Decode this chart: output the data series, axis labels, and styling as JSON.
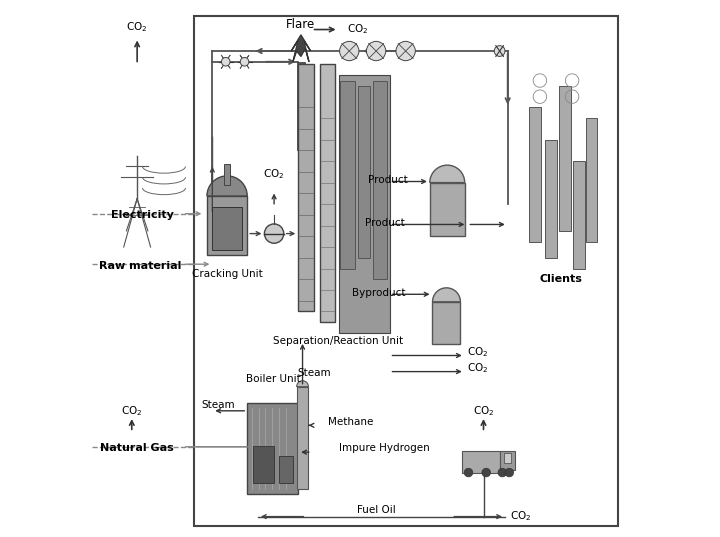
{
  "bg_color": "#ffffff",
  "box_color": "#444444",
  "arrow_color": "#444444",
  "dashed_color": "#777777",
  "gray_fill": "#aaaaaa",
  "dark_gray": "#666666",
  "light_gray": "#cccccc",
  "labels": {
    "co2_top_left": "CO$_2$",
    "electricity": "Electricity",
    "raw_material": "Raw material",
    "co2_bottom_left": "CO$_2$",
    "natural_gas": "Natural Gas",
    "flare": "Flare",
    "co2_flare": "CO$_2$",
    "co2_cracking": "CO$_2$",
    "cracking_unit": "Cracking Unit",
    "boiler_unit": "Boiler Unit",
    "steam_left": "Steam",
    "steam_top": "Steam",
    "methane": "Methane",
    "impure_hydrogen": "Impure Hydrogen",
    "fuel_oil": "Fuel Oil",
    "sep_reaction": "Separation/Reaction Unit",
    "product1": "Product",
    "product2": "Product",
    "byproduct": "Byproduct",
    "co2_sep1": "CO$_2$",
    "co2_sep2": "CO$_2$",
    "co2_truck": "CO$_2$",
    "co2_fueloil": "CO$_2$",
    "clients": "Clients"
  },
  "figsize": [
    7.2,
    5.37
  ],
  "dpi": 100
}
